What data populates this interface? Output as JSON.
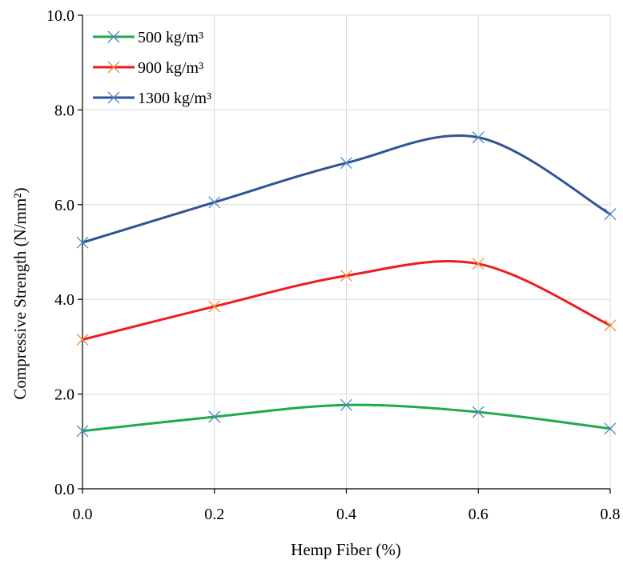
{
  "chart_data": {
    "type": "line",
    "xlabel": "Hemp Fiber (%)",
    "ylabel": "Compressive Strength (N/mm²)",
    "x": [
      0.0,
      0.2,
      0.4,
      0.6,
      0.8
    ],
    "xlim": [
      0.0,
      0.8
    ],
    "ylim": [
      0.0,
      10.0
    ],
    "xticks": [
      "0.0",
      "0.2",
      "0.4",
      "0.6",
      "0.8"
    ],
    "yticks": [
      "0.0",
      "2.0",
      "4.0",
      "6.0",
      "8.0",
      "10.0"
    ],
    "grid": true,
    "legend_position": "top-left",
    "series": [
      {
        "name": "500 kg/m³",
        "values": [
          1.22,
          1.52,
          1.77,
          1.62,
          1.27
        ],
        "color": "#1faa4a",
        "marker_color": "#4a86c8"
      },
      {
        "name": "900 kg/m³",
        "values": [
          3.15,
          3.85,
          4.5,
          4.75,
          3.45
        ],
        "color": "#ee1c1c",
        "marker_color": "#f08c3c"
      },
      {
        "name": "1300 kg/m³",
        "values": [
          5.2,
          6.05,
          6.88,
          7.42,
          5.8
        ],
        "color": "#2f5496",
        "marker_color": "#4a86c8"
      }
    ]
  }
}
